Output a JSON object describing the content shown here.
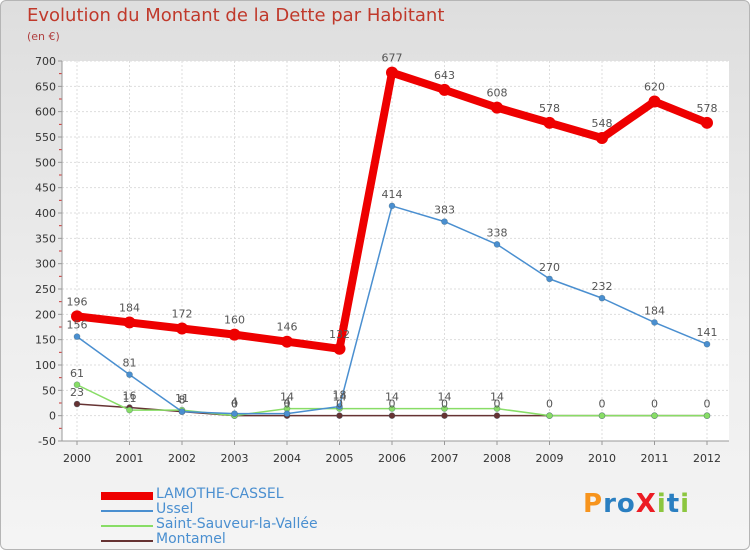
{
  "title": "Evolution du Montant de la Dette par Habitant",
  "unit": "(en €)",
  "logo": "ProXiti",
  "chart_data": {
    "type": "line",
    "title": "Evolution du Montant de la Dette par Habitant",
    "ylabel": "(en €)",
    "ylim": [
      -50,
      700
    ],
    "yticks": [
      "-50",
      "0",
      "50",
      "100",
      "150",
      "200",
      "250",
      "300",
      "350",
      "400",
      "450",
      "500",
      "550",
      "600",
      "650",
      "700"
    ],
    "categories": [
      "2000",
      "2001",
      "2002",
      "2003",
      "2004",
      "2005",
      "2006",
      "2007",
      "2008",
      "2009",
      "2010",
      "2011",
      "2012"
    ],
    "series": [
      {
        "name": "LAMOTHE-CASSEL",
        "color": "#ee0000",
        "values": [
          196,
          184,
          172,
          160,
          146,
          132,
          677,
          643,
          608,
          578,
          548,
          620,
          578
        ],
        "labels": [
          "196",
          "184",
          "172",
          "160",
          "146",
          "132",
          "677",
          "643",
          "608",
          "578",
          "548",
          "620",
          "578"
        ]
      },
      {
        "name": "Ussel",
        "color": "#4a8fd0",
        "values": [
          156,
          81,
          8,
          4,
          4,
          18,
          414,
          383,
          338,
          270,
          232,
          184,
          141
        ],
        "labels": [
          "156",
          "81",
          "8",
          "4",
          "4",
          "18",
          "414",
          "383",
          "338",
          "270",
          "232",
          "184",
          "141"
        ]
      },
      {
        "name": "Saint-Sauveur-la-Vallée",
        "color": "#88dd66",
        "values": [
          61,
          11,
          11,
          0,
          14,
          14,
          14,
          14,
          14,
          0,
          0,
          0,
          0
        ],
        "labels": [
          "61",
          "11",
          "11",
          "0",
          "14",
          "14",
          "14",
          "14",
          "14",
          "",
          "",
          "",
          ""
        ]
      },
      {
        "name": "Montamel",
        "color": "#663333",
        "values": [
          23,
          16,
          8,
          0,
          0,
          0,
          0,
          0,
          0,
          0,
          0,
          0,
          0
        ],
        "labels": [
          "23",
          "16",
          "8",
          "0",
          "0",
          "0",
          "0",
          "0",
          "0",
          "0",
          "0",
          "0",
          "0"
        ]
      }
    ]
  }
}
